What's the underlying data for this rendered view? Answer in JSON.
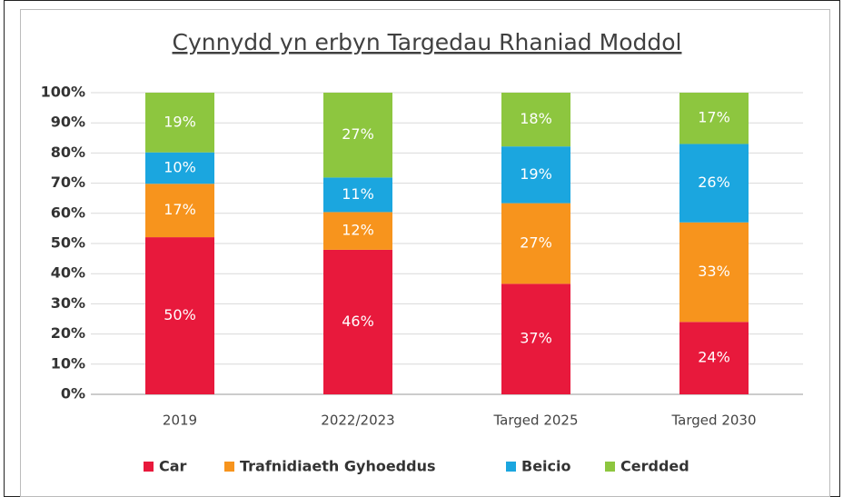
{
  "chart_data": {
    "type": "bar",
    "stacked": "percent",
    "title": "Cynnydd yn erbyn Targedau Rhaniad Moddol",
    "categories": [
      "2019",
      "2022/2023",
      "Targed 2025",
      "Targed 2030"
    ],
    "series": [
      {
        "name": "Car",
        "color": "#e8193c",
        "values": [
          50,
          46,
          37,
          24
        ],
        "value_labels": [
          "50%",
          "46%",
          "37%",
          "24%"
        ]
      },
      {
        "name": "Trafnidiaeth Gyhoeddus",
        "color": "#f7941d",
        "values": [
          17,
          12,
          27,
          33
        ],
        "value_labels": [
          "17%",
          "12%",
          "27%",
          "33%"
        ]
      },
      {
        "name": "Beicio",
        "color": "#1ba6df",
        "values": [
          10,
          11,
          19,
          26
        ],
        "value_labels": [
          "10%",
          "11%",
          "19%",
          "26%"
        ]
      },
      {
        "name": "Cerdded",
        "color": "#8dc63f",
        "values": [
          19,
          27,
          18,
          17
        ],
        "value_labels": [
          "19%",
          "27%",
          "18%",
          "17%"
        ]
      }
    ],
    "ylim": [
      0,
      100
    ],
    "yticks": [
      {
        "value": 0,
        "label": "0%"
      },
      {
        "value": 10,
        "label": "10%"
      },
      {
        "value": 20,
        "label": "20%"
      },
      {
        "value": 30,
        "label": "30%"
      },
      {
        "value": 40,
        "label": "40%"
      },
      {
        "value": 50,
        "label": "50%"
      },
      {
        "value": 60,
        "label": "60%"
      },
      {
        "value": 70,
        "label": "70%"
      },
      {
        "value": 80,
        "label": "80%"
      },
      {
        "value": 90,
        "label": "90%"
      },
      {
        "value": 100,
        "label": "100%"
      }
    ],
    "grid": true,
    "legend": "bottom"
  }
}
